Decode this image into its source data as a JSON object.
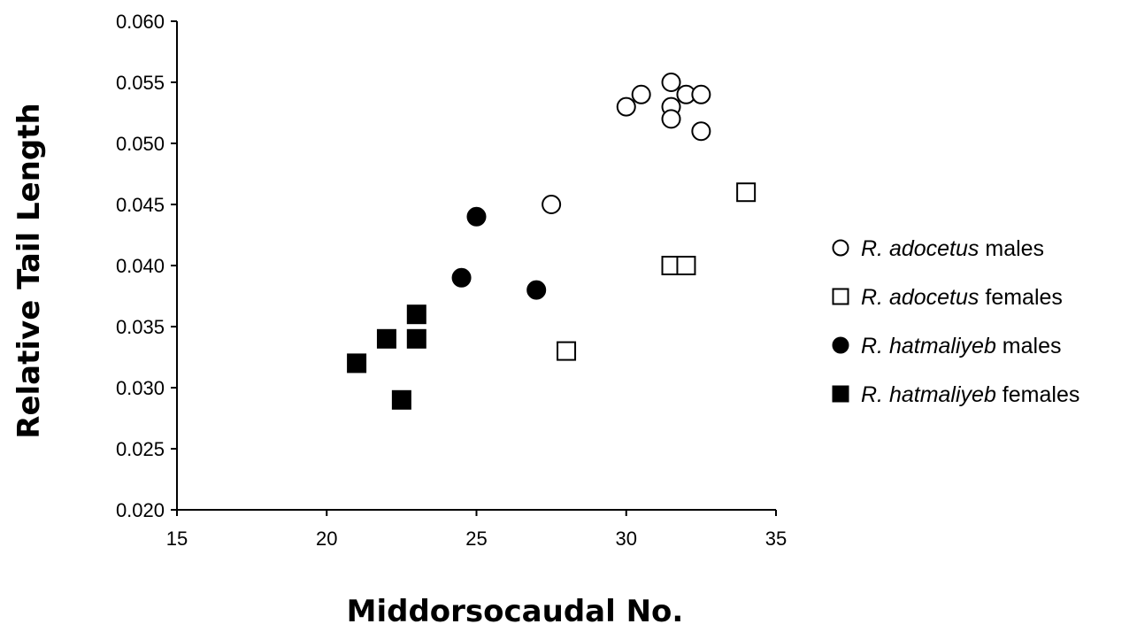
{
  "chart_data": {
    "type": "scatter",
    "xlabel": "Middorsocaudal No.",
    "ylabel": "Relative Tail Length",
    "xlim": [
      15,
      35
    ],
    "ylim": [
      0.02,
      0.06
    ],
    "x_ticks": [
      "15",
      "20",
      "25",
      "30",
      "35"
    ],
    "y_ticks": [
      "0.020",
      "0.025",
      "0.030",
      "0.035",
      "0.040",
      "0.045",
      "0.050",
      "0.055",
      "0.060"
    ],
    "grid": false,
    "legend_position": "right",
    "series": [
      {
        "name": "R. adocetus males",
        "species": "R. adocetus",
        "group": "males",
        "marker": "circle",
        "filled": false,
        "points": [
          [
            27.5,
            0.045
          ],
          [
            30.0,
            0.053
          ],
          [
            30.5,
            0.054
          ],
          [
            31.5,
            0.055
          ],
          [
            31.5,
            0.053
          ],
          [
            31.5,
            0.052
          ],
          [
            32.0,
            0.054
          ],
          [
            32.5,
            0.054
          ],
          [
            32.5,
            0.051
          ]
        ]
      },
      {
        "name": "R. adocetus females",
        "species": "R. adocetus",
        "group": "females",
        "marker": "square",
        "filled": false,
        "points": [
          [
            28.0,
            0.033
          ],
          [
            31.5,
            0.04
          ],
          [
            32.0,
            0.04
          ],
          [
            34.0,
            0.046
          ]
        ]
      },
      {
        "name": "R. hatmaliyeb males",
        "species": "R. hatmaliyeb",
        "group": "males",
        "marker": "circle",
        "filled": true,
        "points": [
          [
            24.5,
            0.039
          ],
          [
            25.0,
            0.044
          ],
          [
            27.0,
            0.038
          ]
        ]
      },
      {
        "name": "R. hatmaliyeb females",
        "species": "R. hatmaliyeb",
        "group": "females",
        "marker": "square",
        "filled": true,
        "points": [
          [
            21.0,
            0.032
          ],
          [
            22.0,
            0.034
          ],
          [
            22.5,
            0.029
          ],
          [
            23.0,
            0.034
          ],
          [
            23.0,
            0.036
          ]
        ]
      }
    ]
  }
}
